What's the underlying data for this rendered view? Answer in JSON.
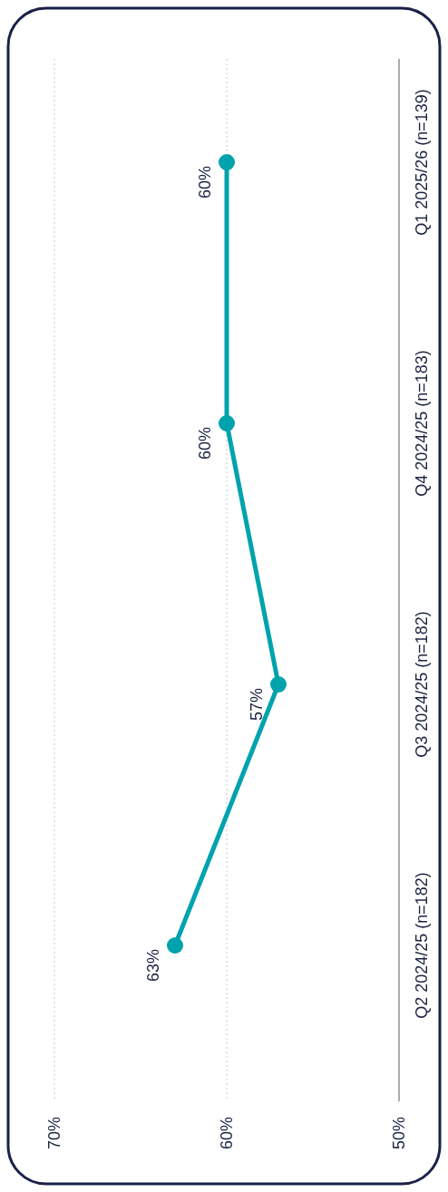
{
  "chart_data": {
    "type": "line",
    "orientation": "horizontal",
    "categories": [
      "Q1 2025/26 (n=139)",
      "Q4 2024/25 (n=183)",
      "Q3 2024/25 (n=182)",
      "Q2 2024/25 (n=182)"
    ],
    "series": [
      {
        "color": "#00a3ad",
        "values": [
          60,
          60,
          57,
          63
        ],
        "value_labels": [
          "60%",
          "60%",
          "57%",
          "63%"
        ]
      }
    ],
    "xlim": [
      70,
      50
    ],
    "xticks": [
      {
        "value": 70,
        "label": "70%"
      },
      {
        "value": 60,
        "label": "60%"
      },
      {
        "value": 50,
        "label": "50%"
      }
    ],
    "grid": "x",
    "marker": "circle",
    "line_style": "solid"
  }
}
